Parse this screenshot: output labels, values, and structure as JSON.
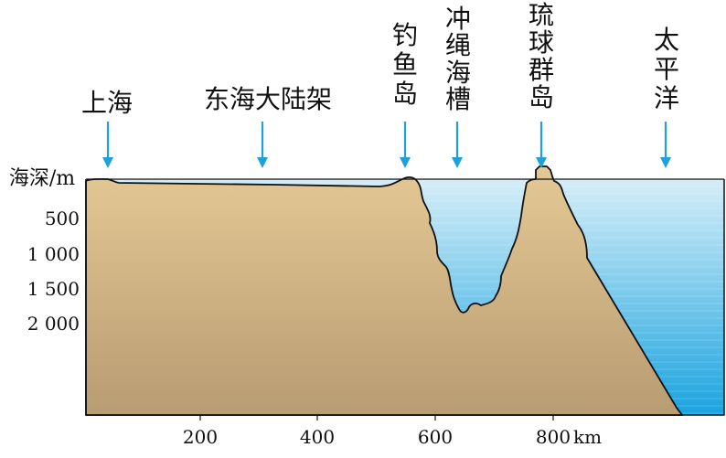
{
  "colors": {
    "sea_top": "#d6eef8",
    "sea_bottom": "#1aa3df",
    "land_top": "#e4c894",
    "land_bottom": "#b89c72",
    "arrow": "#1ea0d8",
    "outline": "#111111"
  },
  "labels": {
    "shanghai": "上海",
    "shelf": "东海大陆架",
    "diaoyu": [
      "钓",
      "鱼",
      "岛"
    ],
    "trough": [
      "冲",
      "绳",
      "海",
      "槽"
    ],
    "ryukyu": [
      "琉",
      "球",
      "群",
      "岛"
    ],
    "pacific": [
      "太",
      "平",
      "洋"
    ]
  },
  "depth_axis": {
    "title": "海深/m",
    "ticks": [
      "500",
      "1 000",
      "1 500",
      "2 000"
    ]
  },
  "distance_axis": {
    "ticks": [
      "200",
      "400",
      "600",
      "800"
    ],
    "unit": "km"
  }
}
